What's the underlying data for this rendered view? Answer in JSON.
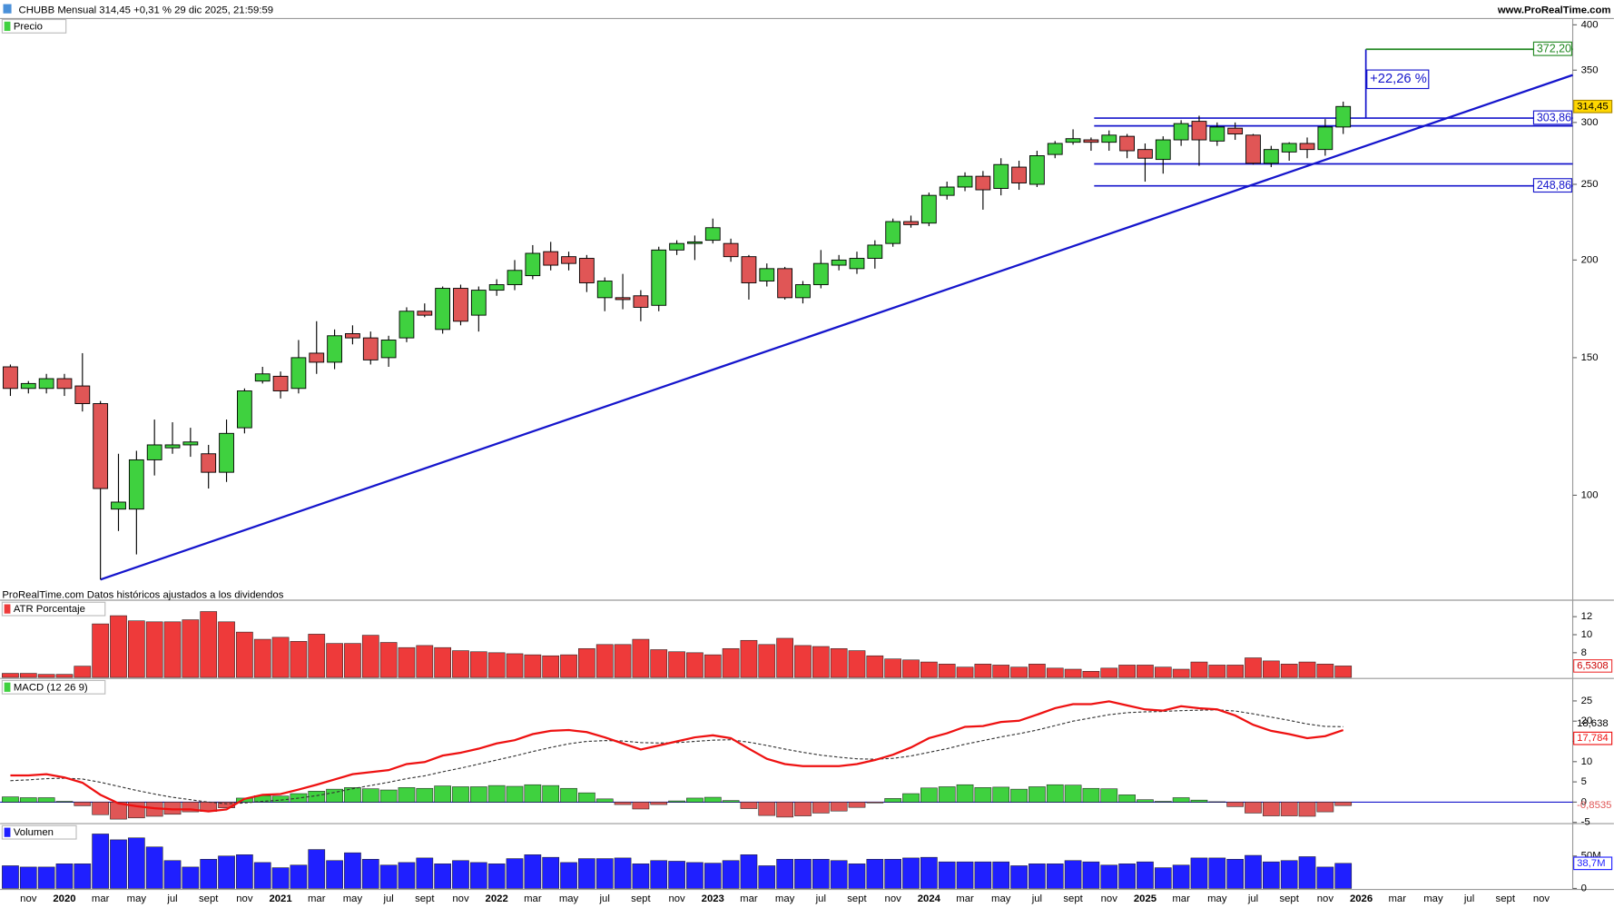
{
  "header": {
    "title": "CHUBB Mensual 314,45 +0,31 % 29 dic 2025, 21:59:59",
    "site": "www.ProRealTime.com",
    "note": "ProRealTime.com Datos históricos ajustados a los dividendos"
  },
  "chart_data": [
    {
      "type": "candlestick",
      "title": "Precio",
      "categories": [
        null,
        "nov",
        null,
        "2020",
        null,
        "mar",
        null,
        "may",
        null,
        "jul",
        null,
        "sept",
        null,
        "nov",
        null,
        "2021",
        null,
        "mar",
        null,
        "may",
        null,
        "jul",
        null,
        "sept",
        null,
        "nov",
        null,
        "2022",
        null,
        "mar",
        null,
        "may",
        null,
        "jul",
        null,
        "sept",
        null,
        "nov",
        null,
        "2023",
        null,
        "mar",
        null,
        "may",
        null,
        "jul",
        null,
        "sept",
        null,
        "nov",
        null,
        "2024",
        null,
        "mar",
        null,
        "may",
        null,
        "jul",
        null,
        "sept",
        null,
        "nov",
        null,
        "2025",
        null,
        "mar",
        null,
        "may",
        null,
        "jul",
        null,
        "sept",
        null,
        "nov",
        null
      ],
      "future_categories": [
        "2026",
        null,
        "mar",
        null,
        "may",
        null,
        "jul",
        null,
        "sept",
        null,
        "nov"
      ],
      "open": [
        146,
        137,
        137,
        141,
        138,
        131,
        96,
        96,
        111,
        115,
        116,
        113,
        107,
        122,
        140,
        142,
        137,
        152,
        148,
        161,
        159,
        150,
        159,
        172,
        163,
        184,
        170,
        183,
        186,
        191,
        205,
        202,
        201,
        179,
        179,
        180,
        175,
        206,
        210,
        212,
        210,
        202,
        188,
        195,
        179,
        186,
        197,
        195,
        201,
        210,
        224,
        223,
        242,
        248,
        256,
        247,
        263,
        250,
        273,
        283,
        285,
        283,
        288,
        277,
        269,
        285,
        301,
        284,
        295,
        289,
        266,
        275,
        282,
        277,
        296
      ],
      "high": [
        147,
        140,
        143,
        143,
        152,
        132,
        113,
        114,
        125,
        124,
        122,
        116,
        125,
        137,
        146,
        144,
        158,
        167,
        163,
        165,
        162,
        160,
        174,
        176,
        185,
        186,
        185,
        189,
        200,
        209,
        211,
        205,
        203,
        190,
        192,
        183,
        208,
        212,
        215,
        226,
        213,
        203,
        198,
        196,
        188,
        206,
        203,
        205,
        212,
        226,
        228,
        244,
        252,
        259,
        260,
        270,
        268,
        276,
        284,
        294,
        287,
        293,
        290,
        282,
        288,
        302,
        306,
        300,
        300,
        290,
        280,
        283,
        287,
        303,
        319
      ],
      "low": [
        134,
        135,
        135,
        134,
        128,
        78,
        90,
        84,
        106,
        113,
        112,
        102,
        104,
        120,
        139,
        133,
        135,
        143,
        145,
        156,
        147,
        146,
        157,
        169,
        161,
        165,
        162,
        180,
        183,
        189,
        194,
        194,
        182,
        172,
        173,
        167,
        172,
        203,
        200,
        210,
        199,
        178,
        185,
        178,
        176,
        184,
        194,
        192,
        195,
        208,
        220,
        221,
        239,
        245,
        232,
        242,
        246,
        248,
        270,
        281,
        276,
        276,
        270,
        252,
        258,
        280,
        264,
        280,
        285,
        265,
        263,
        268,
        270,
        272,
        290
      ],
      "close": [
        137,
        139,
        141,
        137,
        131,
        102,
        98,
        111,
        116,
        116,
        117,
        107,
        120,
        136,
        143,
        136,
        150,
        148,
        160,
        159,
        149,
        158,
        172,
        170,
        184,
        167,
        183,
        186,
        194,
        204,
        197,
        198,
        187,
        188,
        178,
        174,
        206,
        210,
        211,
        220,
        202,
        187,
        195,
        179,
        186,
        198,
        200,
        201,
        209,
        224,
        222,
        242,
        248,
        256,
        246,
        265,
        251,
        272,
        282,
        286,
        283,
        289,
        276,
        270,
        285,
        299,
        285,
        296,
        290,
        266,
        277,
        282,
        277,
        296,
        314.45
      ],
      "up_color": "#3fd13f",
      "down_color": "#e05656",
      "log_scale": true,
      "ylim": [
        73.4,
        407.5
      ],
      "yticks": [
        100,
        150,
        200,
        250,
        300,
        350,
        400
      ],
      "last_label": "314,45",
      "levels": [
        {
          "value": 303.86,
          "label": "303,86"
        },
        {
          "value": 297
        },
        {
          "value": 265.5
        },
        {
          "value": 248.86,
          "label": "248,86"
        }
      ],
      "target": {
        "value": 372.2,
        "label": "372,20"
      },
      "change_label": "+22,26 %",
      "trendline": [
        78,
        345
      ]
    },
    {
      "type": "bar",
      "title": "ATR Porcentaje",
      "color": "#ee3a3a",
      "values": [
        5.71,
        5.71,
        5.6,
        5.6,
        6.51,
        11.2,
        12.11,
        11.54,
        11.43,
        11.43,
        11.66,
        12.57,
        11.43,
        10.29,
        9.49,
        9.71,
        9.26,
        10.06,
        9.03,
        9.03,
        9.94,
        9.14,
        8.57,
        8.8,
        8.57,
        8.23,
        8.11,
        8.0,
        7.89,
        7.77,
        7.66,
        7.77,
        8.46,
        8.91,
        8.91,
        9.49,
        8.34,
        8.11,
        8.0,
        7.77,
        8.46,
        9.37,
        8.91,
        9.6,
        8.8,
        8.69,
        8.46,
        8.23,
        7.66,
        7.31,
        7.2,
        6.97,
        6.74,
        6.4,
        6.74,
        6.63,
        6.4,
        6.74,
        6.29,
        6.17,
        5.94,
        6.29,
        6.63,
        6.63,
        6.4,
        6.17,
        6.97,
        6.63,
        6.63,
        7.43,
        7.09,
        6.74,
        6.97,
        6.74,
        6.5308
      ],
      "ylim": [
        5.26,
        13.83
      ],
      "yticks": [
        8,
        10,
        12
      ],
      "last_label": "6,5308"
    },
    {
      "type": "macd",
      "title": "MACD (12 26 9)",
      "macd": {
        "color": "#ee1111",
        "last_label": "17,784",
        "values": [
          6.6,
          6.6,
          6.9,
          6.1,
          4.8,
          1.8,
          -0.3,
          -1.0,
          -1.5,
          -1.8,
          -1.8,
          -2.3,
          -1.8,
          0.8,
          1.8,
          2.0,
          3.1,
          4.3,
          5.6,
          6.9,
          7.4,
          7.9,
          9.4,
          9.9,
          11.5,
          12.2,
          13.2,
          14.5,
          15.3,
          16.8,
          17.6,
          17.8,
          17.3,
          16.0,
          14.5,
          13.0,
          14.0,
          15.0,
          16.0,
          16.5,
          15.8,
          13.2,
          10.7,
          9.4,
          8.9,
          8.9,
          8.9,
          9.4,
          10.4,
          11.7,
          13.5,
          15.8,
          17.0,
          18.6,
          18.8,
          19.8,
          20.1,
          21.6,
          23.2,
          24.2,
          24.2,
          24.9,
          23.9,
          22.9,
          22.6,
          23.7,
          23.2,
          22.9,
          21.4,
          19.1,
          17.6,
          16.8,
          15.8,
          16.3,
          17.784
        ]
      },
      "signal": {
        "color": "#333333",
        "last_label": "18,638",
        "values": [
          5.3,
          5.5,
          5.8,
          5.9,
          5.7,
          4.9,
          3.9,
          2.9,
          2.0,
          1.2,
          0.6,
          0.0,
          -0.4,
          -0.2,
          0.2,
          0.5,
          1.0,
          1.6,
          2.4,
          3.3,
          4.1,
          4.9,
          5.8,
          6.5,
          7.5,
          8.4,
          9.4,
          10.4,
          11.4,
          12.5,
          13.5,
          14.4,
          15.0,
          15.2,
          15.1,
          14.7,
          14.6,
          14.7,
          15.0,
          15.3,
          15.4,
          14.8,
          14.0,
          13.1,
          12.3,
          11.6,
          11.1,
          10.7,
          10.6,
          10.8,
          11.4,
          12.3,
          13.2,
          14.3,
          15.2,
          16.1,
          16.9,
          17.8,
          18.9,
          20.0,
          20.8,
          21.6,
          22.1,
          22.3,
          22.4,
          22.6,
          22.7,
          22.8,
          22.5,
          21.8,
          21.0,
          20.2,
          19.3,
          18.7,
          18.638
        ]
      },
      "histogram": {
        "up_color": "#3fd13f",
        "down_color": "#e05656",
        "last_label": "-0,8535",
        "values": [
          1.3,
          1.1,
          1.1,
          0.2,
          -0.9,
          -3.1,
          -4.2,
          -3.9,
          -3.5,
          -3.0,
          -2.4,
          -2.3,
          -1.4,
          1.0,
          1.6,
          1.5,
          2.1,
          2.7,
          3.2,
          3.6,
          3.3,
          3.0,
          3.6,
          3.4,
          4.0,
          3.8,
          3.8,
          4.1,
          3.9,
          4.3,
          4.1,
          3.4,
          2.3,
          0.8,
          -0.6,
          -1.7,
          -0.6,
          0.3,
          1.0,
          1.2,
          0.4,
          -1.6,
          -3.3,
          -3.7,
          -3.4,
          -2.7,
          -2.2,
          -1.3,
          -0.2,
          0.9,
          2.1,
          3.5,
          3.8,
          4.3,
          3.6,
          3.7,
          3.2,
          3.8,
          4.3,
          4.2,
          3.4,
          3.3,
          1.8,
          0.6,
          0.2,
          1.1,
          0.5,
          0.1,
          -1.1,
          -2.7,
          -3.4,
          -3.4,
          -3.5,
          -2.4,
          -0.8535
        ]
      },
      "ylim": [
        -5.3,
        30.3
      ],
      "yticks": [
        -5,
        0,
        5,
        10,
        15,
        20,
        25
      ]
    },
    {
      "type": "bar",
      "title": "Volumen",
      "color": "#1f1fff",
      "values": [
        35000000,
        33000000,
        33000000,
        38000000,
        38000000,
        84000000,
        75000000,
        78000000,
        64000000,
        43000000,
        33000000,
        45000000,
        50000000,
        52000000,
        40000000,
        32000000,
        36000000,
        60000000,
        43000000,
        55000000,
        45000000,
        36000000,
        40000000,
        47000000,
        38000000,
        43000000,
        40000000,
        38000000,
        46000000,
        52000000,
        48000000,
        40000000,
        46000000,
        46000000,
        47000000,
        38000000,
        43000000,
        42000000,
        40000000,
        39000000,
        43000000,
        52000000,
        35000000,
        45000000,
        45000000,
        45000000,
        43000000,
        38000000,
        45000000,
        45000000,
        47000000,
        48000000,
        41000000,
        41000000,
        41000000,
        41000000,
        35000000,
        38000000,
        38000000,
        43000000,
        41000000,
        36000000,
        38000000,
        41000000,
        32000000,
        36000000,
        47000000,
        47000000,
        45000000,
        51000000,
        41000000,
        43000000,
        49000000,
        33000000,
        38700000
      ],
      "ylim": [
        0,
        100000000
      ],
      "yticks": [
        0,
        {
          "value": 50000000,
          "label": "50M"
        }
      ],
      "last_label": "38,7M"
    }
  ]
}
